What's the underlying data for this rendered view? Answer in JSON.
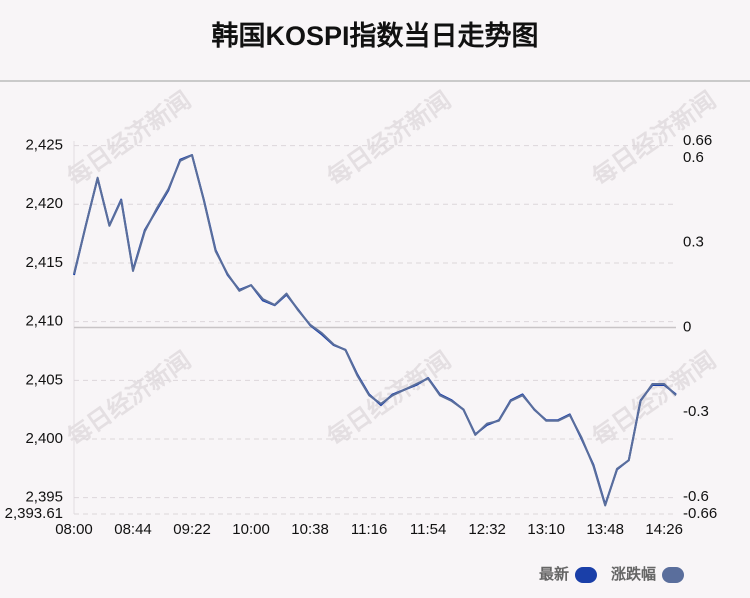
{
  "chart_data": {
    "type": "line",
    "title": "韩国KOSPI指数当日走势图",
    "watermark": "每日经济新闻",
    "categories": [
      "08:00",
      null,
      null,
      null,
      null,
      "08:44",
      null,
      null,
      null,
      null,
      "09:22",
      null,
      null,
      null,
      null,
      "10:00",
      null,
      null,
      null,
      null,
      "10:38",
      null,
      null,
      null,
      null,
      "11:16",
      null,
      null,
      null,
      null,
      "11:54",
      null,
      null,
      null,
      null,
      "12:32",
      null,
      null,
      null,
      null,
      "13:10",
      null,
      null,
      null,
      null,
      "13:48",
      null,
      null,
      null,
      null,
      "14:26",
      null
    ],
    "series": [
      {
        "name": "最新",
        "color": "#1a3fa8",
        "values": [
          2413.97,
          2418.2,
          2422.2,
          2418.2,
          2420.4,
          2414.4,
          2417.8,
          2419.5,
          2421.2,
          2423.8,
          2424.2,
          2420.4,
          2416.1,
          2414.0,
          2412.7,
          2413.1,
          2411.8,
          2411.4,
          2412.3,
          2411.0,
          2409.7,
          2408.9,
          2408.0,
          2407.6,
          2405.5,
          2403.8,
          2402.9,
          2403.8,
          2404.2,
          2404.6,
          2405.2,
          2403.8,
          2403.3,
          2402.5,
          2400.4,
          2401.2,
          2401.6,
          2403.3,
          2403.8,
          2402.5,
          2401.6,
          2401.6,
          2402.1,
          2400.0,
          2397.8,
          2394.4,
          2397.4,
          2398.2,
          2403.3,
          2404.6,
          2404.6,
          2403.8
        ]
      },
      {
        "name": "涨跌幅",
        "color": "#5a6e9c",
        "axis": "y2",
        "values": [
          0.19,
          0.36,
          0.53,
          0.36,
          0.45,
          0.2,
          0.34,
          0.42,
          0.49,
          0.59,
          0.61,
          0.45,
          0.27,
          0.19,
          0.13,
          0.15,
          0.1,
          0.08,
          0.12,
          0.06,
          0.01,
          -0.02,
          -0.06,
          -0.08,
          -0.17,
          -0.24,
          -0.27,
          -0.24,
          -0.22,
          -0.2,
          -0.18,
          -0.24,
          -0.26,
          -0.29,
          -0.38,
          -0.34,
          -0.33,
          -0.26,
          -0.24,
          -0.29,
          -0.33,
          -0.33,
          -0.31,
          -0.39,
          -0.49,
          -0.63,
          -0.5,
          -0.47,
          -0.26,
          -0.2,
          -0.2,
          -0.24
        ]
      }
    ],
    "ylim": [
      2393.61,
      2425.39
    ],
    "yticks": [
      {
        "value": 2393.61,
        "label": "2,393.61"
      },
      {
        "value": 2395,
        "label": "2,395"
      },
      {
        "value": 2400,
        "label": "2,400"
      },
      {
        "value": 2405,
        "label": "2,405"
      },
      {
        "value": 2410,
        "label": "2,410"
      },
      {
        "value": 2415,
        "label": "2,415"
      },
      {
        "value": 2420,
        "label": "2,420"
      },
      {
        "value": 2425,
        "label": "2,425"
      }
    ],
    "y2lim": [
      -0.66,
      0.66
    ],
    "y2ticks": [
      -0.66,
      -0.6,
      -0.3,
      0,
      0.3,
      0.6,
      0.66
    ],
    "grid": true,
    "legend": "bottom-right"
  }
}
